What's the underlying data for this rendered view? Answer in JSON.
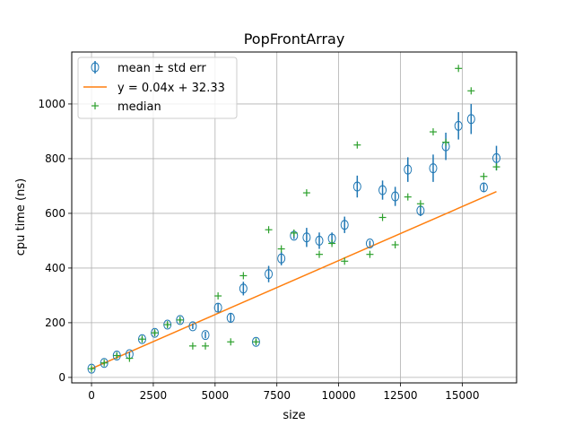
{
  "chart_data": {
    "type": "scatter",
    "title": "PopFrontArray",
    "xlabel": "size",
    "ylabel": "cpu time (ns)",
    "xlim": [
      -800,
      17200
    ],
    "ylim": [
      -20,
      1190
    ],
    "xticks": [
      0,
      2500,
      5000,
      7500,
      10000,
      12500,
      15000
    ],
    "xtick_labels": [
      "0",
      "2500",
      "5000",
      "7500",
      "10000",
      "12500",
      "15000"
    ],
    "yticks": [
      0,
      200,
      400,
      600,
      800,
      1000
    ],
    "ytick_labels": [
      "0",
      "200",
      "400",
      "600",
      "800",
      "1000"
    ],
    "grid": true,
    "legend_position": "top-left",
    "legend": [
      "mean ± std err",
      "y = 0.04x + 32.33",
      "median"
    ],
    "colors": {
      "mean": "#1f77b4",
      "fit": "#ff7f0e",
      "median": "#2ca02c"
    },
    "series": [
      {
        "name": "mean ± std err",
        "type": "errorbar",
        "x": [
          0,
          512,
          1024,
          1536,
          2048,
          2560,
          3072,
          3584,
          4096,
          4608,
          5120,
          5632,
          6144,
          6656,
          7168,
          7680,
          8192,
          8704,
          9216,
          9728,
          10240,
          10752,
          11264,
          11776,
          12288,
          12800,
          13312,
          13824,
          14336,
          14848,
          15360,
          15872,
          16384
        ],
        "y": [
          32,
          53,
          80,
          85,
          140,
          163,
          193,
          210,
          187,
          155,
          255,
          218,
          325,
          130,
          378,
          435,
          518,
          512,
          500,
          508,
          558,
          698,
          490,
          685,
          662,
          760,
          610,
          765,
          845,
          920,
          945,
          695,
          802
        ],
        "err": [
          6,
          6,
          8,
          8,
          8,
          8,
          8,
          8,
          10,
          12,
          15,
          18,
          25,
          8,
          30,
          25,
          12,
          35,
          30,
          22,
          30,
          40,
          10,
          35,
          35,
          45,
          20,
          50,
          50,
          50,
          55,
          15,
          45
        ]
      },
      {
        "name": "y = 0.04x + 32.33",
        "type": "line",
        "x": [
          0,
          16384
        ],
        "y": [
          32.33,
          679.5
        ]
      },
      {
        "name": "median",
        "type": "scatter",
        "x": [
          0,
          512,
          1024,
          1536,
          2048,
          2560,
          3072,
          3584,
          4096,
          4608,
          5120,
          5632,
          6144,
          6656,
          7168,
          7680,
          8192,
          8704,
          9216,
          9728,
          10240,
          10752,
          11264,
          11776,
          12288,
          12800,
          13312,
          13824,
          14336,
          14848,
          15360,
          15872,
          16384
        ],
        "y": [
          32,
          53,
          80,
          70,
          140,
          163,
          193,
          210,
          115,
          115,
          298,
          130,
          372,
          130,
          540,
          470,
          528,
          675,
          450,
          490,
          425,
          850,
          450,
          585,
          485,
          660,
          635,
          898,
          860,
          1130,
          1048,
          735,
          770
        ]
      }
    ]
  }
}
